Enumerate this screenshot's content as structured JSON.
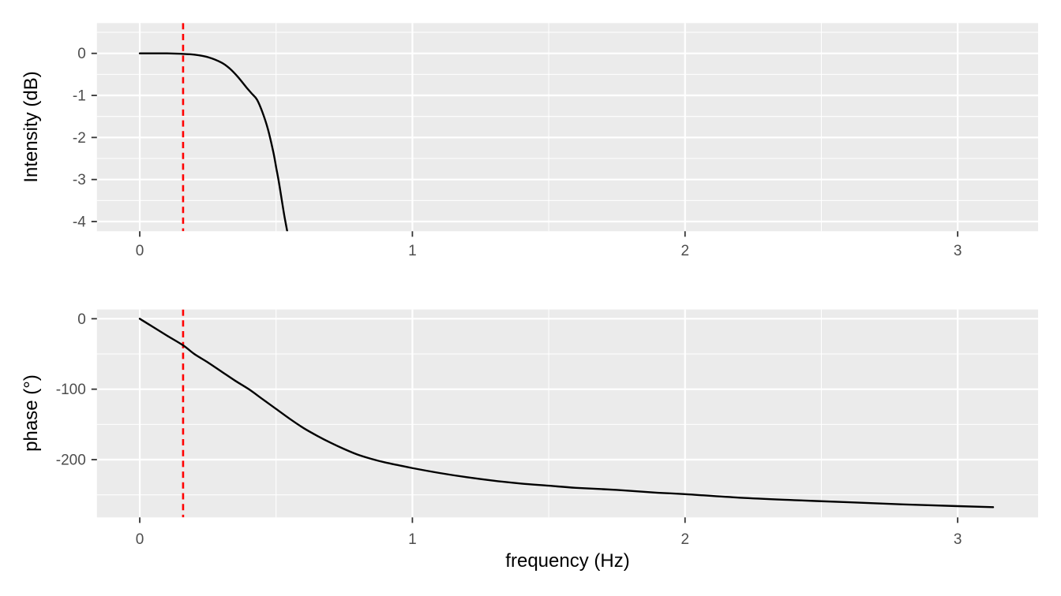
{
  "figure": {
    "background": "#FFFFFF",
    "description": "Bode plot of a low-pass filter: intensity (dB) and phase (degrees) versus frequency (Hz), with dashed red cutoff-frequency marker",
    "cutoff_frequency_hz": 0.159
  },
  "labels": {
    "x_axis_title": "frequency (Hz)",
    "intensity_axis_title": "Intensity (dB)",
    "phase_axis_title": "phase (°)"
  },
  "colors": {
    "panel_background": "#EBEBEB",
    "gridline": "#FFFFFF",
    "curve": "#000000",
    "cutoff_line": "#FF0000",
    "tick_label": "#4D4D4D",
    "tick_mark": "#333333",
    "axis_title": "#000000"
  },
  "chart_data": [
    {
      "type": "line",
      "panel": "intensity",
      "title": "",
      "xlabel": "",
      "ylabel": "Intensity (dB)",
      "x_range": [
        -0.157,
        3.295
      ],
      "y_range": [
        0.72,
        -4.23
      ],
      "x_ticks": [
        0,
        1,
        2,
        3
      ],
      "x_minor_ticks": [
        0.5,
        1.5,
        2.5
      ],
      "y_ticks": [
        0,
        -1,
        -2,
        -3,
        -4
      ],
      "y_minor_ticks": [
        0.5,
        -0.5,
        -1.5,
        -2.5,
        -3.5
      ],
      "grid": "major+minor",
      "legend": "none",
      "vline": {
        "x": 0.159,
        "color": "#FF0000",
        "style": "dashed"
      },
      "series": [
        {
          "name": "intensity_db",
          "color": "#000000",
          "style": "solid",
          "points": [
            [
              0,
              0
            ],
            [
              0.05,
              0
            ],
            [
              0.1,
              0
            ],
            [
              0.15,
              -0.01
            ],
            [
              0.2,
              -0.03
            ],
            [
              0.25,
              -0.09
            ],
            [
              0.3,
              -0.22
            ],
            [
              0.33,
              -0.36
            ],
            [
              0.36,
              -0.56
            ],
            [
              0.39,
              -0.8
            ],
            [
              0.41,
              -0.95
            ],
            [
              0.43,
              -1.1
            ],
            [
              0.45,
              -1.4
            ],
            [
              0.47,
              -1.8
            ],
            [
              0.49,
              -2.35
            ],
            [
              0.5,
              -2.7
            ],
            [
              0.51,
              -3.05
            ],
            [
              0.52,
              -3.45
            ],
            [
              0.53,
              -3.85
            ],
            [
              0.54,
              -4.2
            ],
            [
              0.55,
              -4.55
            ]
          ]
        }
      ]
    },
    {
      "type": "line",
      "panel": "phase",
      "title": "",
      "xlabel": "frequency (Hz)",
      "ylabel": "phase (°)",
      "x_range": [
        -0.157,
        3.295
      ],
      "y_range": [
        13.1,
        -282.0
      ],
      "x_ticks": [
        0,
        1,
        2,
        3
      ],
      "x_minor_ticks": [
        0.5,
        1.5,
        2.5
      ],
      "y_ticks": [
        0,
        -100,
        -200
      ],
      "y_minor_ticks": [
        -50,
        -150,
        -250
      ],
      "grid": "major+minor",
      "legend": "none",
      "vline": {
        "x": 0.159,
        "color": "#FF0000",
        "style": "dashed"
      },
      "series": [
        {
          "name": "phase_deg",
          "color": "#000000",
          "style": "solid",
          "points": [
            [
              0,
              0
            ],
            [
              0.05,
              -12
            ],
            [
              0.1,
              -24
            ],
            [
              0.16,
              -38
            ],
            [
              0.2,
              -50
            ],
            [
              0.25,
              -62
            ],
            [
              0.3,
              -75
            ],
            [
              0.35,
              -88
            ],
            [
              0.4,
              -100
            ],
            [
              0.45,
              -114
            ],
            [
              0.5,
              -128
            ],
            [
              0.55,
              -142
            ],
            [
              0.6,
              -155
            ],
            [
              0.65,
              -166
            ],
            [
              0.7,
              -176
            ],
            [
              0.75,
              -185
            ],
            [
              0.8,
              -193
            ],
            [
              0.85,
              -199
            ],
            [
              0.9,
              -204
            ],
            [
              0.95,
              -208
            ],
            [
              1.0,
              -212
            ],
            [
              1.1,
              -219
            ],
            [
              1.2,
              -225
            ],
            [
              1.3,
              -230
            ],
            [
              1.4,
              -234
            ],
            [
              1.5,
              -237
            ],
            [
              1.6,
              -240
            ],
            [
              1.75,
              -243
            ],
            [
              1.9,
              -247
            ],
            [
              2.0,
              -249
            ],
            [
              2.2,
              -254
            ],
            [
              2.4,
              -257.5
            ],
            [
              2.6,
              -260.5
            ],
            [
              2.8,
              -263.5
            ],
            [
              3.0,
              -266
            ],
            [
              3.13,
              -267.5
            ]
          ]
        }
      ]
    }
  ]
}
